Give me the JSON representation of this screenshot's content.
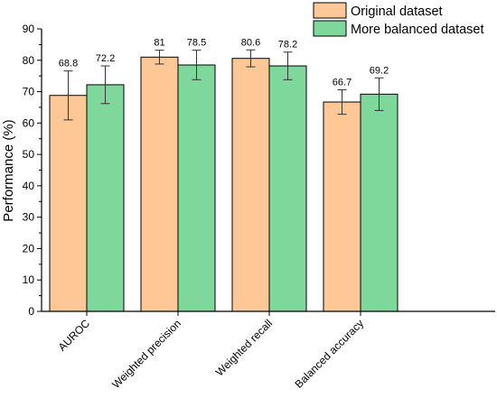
{
  "chart_data": {
    "type": "bar",
    "title": "",
    "xlabel": "",
    "ylabel": "Performance (%)",
    "ylim": [
      0,
      90
    ],
    "yticks": [
      0,
      10,
      20,
      30,
      40,
      50,
      60,
      70,
      80,
      90
    ],
    "grid": false,
    "legend_position": "top-right",
    "categories": [
      "AUROC",
      "Weighted precision",
      "Weighted recall",
      "Balanced accuracy"
    ],
    "series": [
      {
        "name": "Original dataset",
        "color": "#fdc896",
        "values": [
          68.8,
          81,
          80.6,
          66.7
        ],
        "value_labels": [
          "68.8",
          "81",
          "80.6",
          "66.7"
        ],
        "error_low": [
          61.0,
          78.8,
          77.9,
          62.8
        ],
        "error_high": [
          76.6,
          83.2,
          83.3,
          70.6
        ]
      },
      {
        "name": "More balanced dataset",
        "color": "#7ed89b",
        "values": [
          72.2,
          78.5,
          78.2,
          69.2
        ],
        "value_labels": [
          "72.2",
          "78.5",
          "78.2",
          "69.2"
        ],
        "error_low": [
          66.2,
          73.8,
          73.8,
          64.0
        ],
        "error_high": [
          78.2,
          83.2,
          82.6,
          74.4
        ]
      }
    ]
  }
}
